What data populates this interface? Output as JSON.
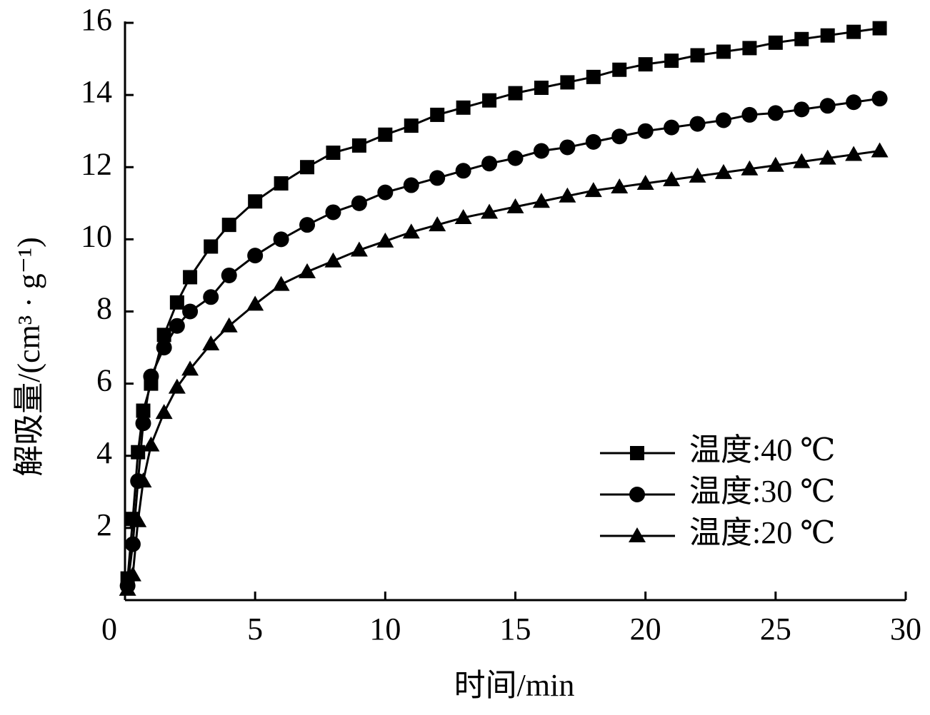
{
  "chart_data": {
    "type": "line",
    "xlabel": "时间/min",
    "ylabel": "解吸量/(cm³ · g⁻¹)",
    "x": [
      0.1,
      0.3,
      0.5,
      0.7,
      1,
      1.5,
      2,
      2.5,
      3.3,
      4,
      5,
      6,
      7,
      8,
      9,
      10,
      11,
      12,
      13,
      14,
      15,
      16,
      17,
      18,
      19,
      20,
      21,
      22,
      23,
      24,
      25,
      26,
      27,
      28,
      29
    ],
    "series": [
      {
        "name": "温度:40 ℃",
        "color": "#000000",
        "marker": "square",
        "values": [
          0.6,
          2.25,
          4.1,
          5.25,
          6.0,
          7.35,
          8.25,
          8.95,
          9.8,
          10.4,
          11.05,
          11.55,
          12.0,
          12.4,
          12.6,
          12.9,
          13.15,
          13.45,
          13.65,
          13.85,
          14.05,
          14.2,
          14.35,
          14.5,
          14.7,
          14.85,
          14.95,
          15.1,
          15.2,
          15.3,
          15.45,
          15.55,
          15.65,
          15.75,
          15.85
        ]
      },
      {
        "name": "温度:30 ℃",
        "color": "#000000",
        "marker": "circle",
        "values": [
          0.4,
          1.55,
          3.3,
          4.9,
          6.2,
          7.0,
          7.6,
          8.0,
          8.4,
          9.0,
          9.55,
          10.0,
          10.4,
          10.75,
          11.0,
          11.3,
          11.5,
          11.7,
          11.9,
          12.1,
          12.25,
          12.45,
          12.55,
          12.7,
          12.85,
          13.0,
          13.1,
          13.2,
          13.3,
          13.45,
          13.5,
          13.6,
          13.7,
          13.8,
          13.9
        ]
      },
      {
        "name": "温度:20 ℃",
        "color": "#000000",
        "marker": "triangle",
        "values": [
          0.3,
          0.7,
          2.2,
          3.3,
          4.3,
          5.2,
          5.9,
          6.4,
          7.1,
          7.6,
          8.2,
          8.75,
          9.1,
          9.4,
          9.7,
          9.95,
          10.2,
          10.4,
          10.6,
          10.75,
          10.9,
          11.05,
          11.2,
          11.35,
          11.45,
          11.55,
          11.65,
          11.75,
          11.85,
          11.95,
          12.05,
          12.15,
          12.25,
          12.35,
          12.45
        ]
      }
    ],
    "xlim": [
      0,
      30
    ],
    "xticks": [
      0,
      5,
      10,
      15,
      20,
      25,
      30
    ],
    "ylim": [
      0,
      16
    ],
    "yticks": [
      2,
      4,
      6,
      8,
      10,
      12,
      14,
      16
    ],
    "grid": false,
    "legend": "lower right"
  }
}
